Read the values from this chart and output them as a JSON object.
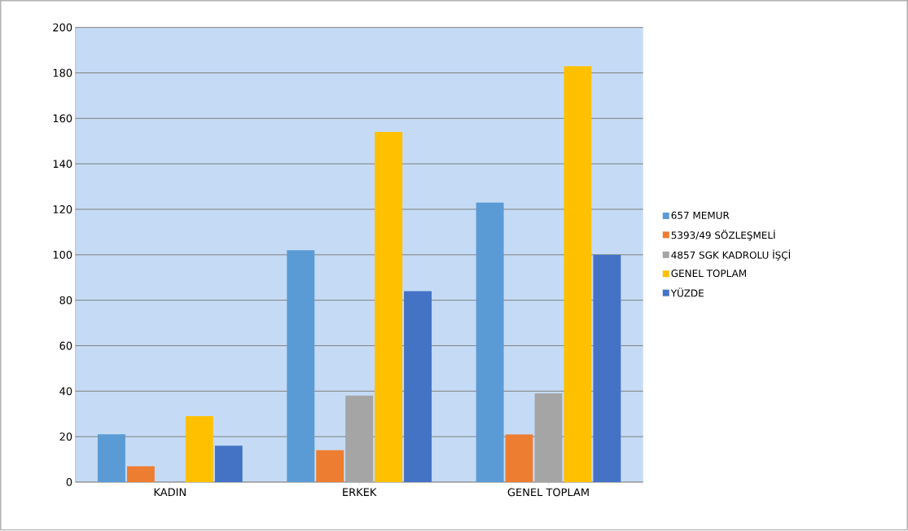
{
  "chart_data": {
    "type": "bar",
    "categories": [
      "KADIN",
      "ERKEK",
      "GENEL TOPLAM"
    ],
    "series": [
      {
        "name": "657 MEMUR",
        "color": "#5b9bd5",
        "values": [
          21,
          102,
          123
        ]
      },
      {
        "name": "5393/49 SÖZLEŞMELİ",
        "color": "#ed7d31",
        "values": [
          7,
          14,
          21
        ]
      },
      {
        "name": "4857 SGK KADROLU İŞÇİ",
        "color": "#a5a5a5",
        "values": [
          0,
          38,
          39
        ]
      },
      {
        "name": "GENEL TOPLAM",
        "color": "#ffc000",
        "values": [
          29,
          154,
          183
        ]
      },
      {
        "name": "YÜZDE",
        "color": "#4472c4",
        "values": [
          16,
          84,
          100
        ]
      }
    ],
    "ylim": [
      0,
      200
    ],
    "yticks": [
      0,
      20,
      40,
      60,
      80,
      100,
      120,
      140,
      160,
      180,
      200
    ],
    "grid": "y",
    "legend": "right"
  }
}
